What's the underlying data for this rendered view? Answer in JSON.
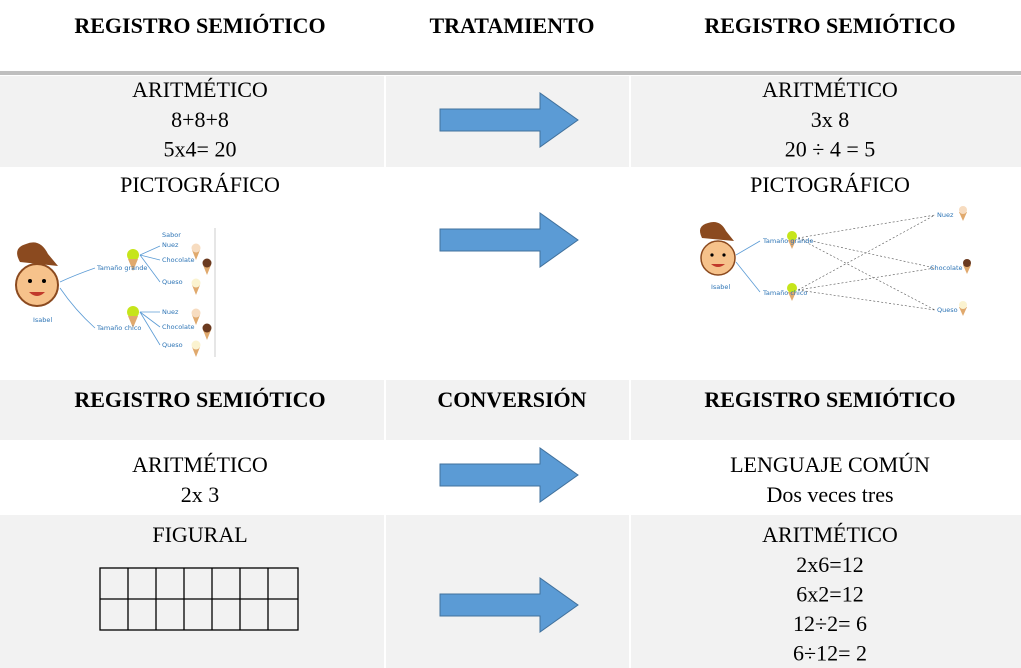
{
  "table": {
    "header": [
      "REGISTRO SEMIÓTICO",
      "TRATAMIENTO",
      "REGISTRO SEMIÓTICO"
    ],
    "rows": [
      {
        "left": {
          "title": "ARITMÉTICO",
          "lines": [
            "8+8+8",
            "5x4= 20"
          ]
        },
        "right": {
          "title": "ARITMÉTICO",
          "lines": [
            "3x 8",
            "20 ÷ 4 = 5"
          ]
        }
      },
      {
        "left": {
          "title": "PICTOGRÁFICO",
          "diagram": {
            "person": "Isabel",
            "heading": "Sabor",
            "branches": [
              {
                "label": "Tamaño grande",
                "leaves": [
                  "Nuez",
                  "Chocolate",
                  "Queso"
                ]
              },
              {
                "label": "Tamaño chico",
                "leaves": [
                  "Nuez",
                  "Chocolate",
                  "Queso"
                ]
              }
            ]
          }
        },
        "right": {
          "title": "PICTOGRÁFICO",
          "diagram": {
            "person": "Isabel",
            "branches": [
              "Tamaño grande",
              "Tamaño chico"
            ],
            "leaves": [
              "Nuez",
              "Chocolate",
              "Queso"
            ]
          }
        }
      }
    ],
    "header2": [
      "REGISTRO SEMIÓTICO",
      "CONVERSIÓN",
      "REGISTRO SEMIÓTICO"
    ],
    "rows2": [
      {
        "left": {
          "title": "ARITMÉTICO",
          "lines": [
            "2x 3"
          ]
        },
        "right": {
          "title": "LENGUAJE COMÚN",
          "lines": [
            "Dos veces tres"
          ]
        }
      },
      {
        "left": {
          "title": "FIGURAL"
        },
        "right": {
          "title": "ARITMÉTICO",
          "lines": [
            "2x6=12",
            "6x2=12",
            "12÷2= 6",
            "6÷12= 2"
          ]
        }
      }
    ]
  }
}
